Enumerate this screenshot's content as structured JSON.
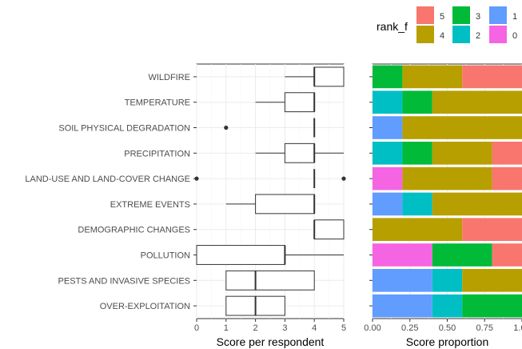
{
  "legend": {
    "title": "rank_f",
    "entries": [
      {
        "label": "5",
        "color": "#F8766D"
      },
      {
        "label": "4",
        "color": "#B79F00"
      },
      {
        "label": "3",
        "color": "#00BA38"
      },
      {
        "label": "2",
        "color": "#00BFC4"
      },
      {
        "label": "1",
        "color": "#619CFF"
      },
      {
        "label": "0",
        "color": "#F564E3"
      }
    ]
  },
  "chart_data": [
    {
      "type": "boxplot",
      "orientation": "horizontal",
      "xlabel": "Score per respondent",
      "xlim": [
        0,
        5
      ],
      "xticks": [
        "0",
        "1",
        "2",
        "3",
        "4",
        "5"
      ],
      "categories": [
        "WILDFIRE",
        "TEMPERATURE",
        "SOIL PHYSICAL DEGRADATION",
        "PRECIPITATION",
        "LAND-USE AND LAND-COVER CHANGE",
        "EXTREME EVENTS",
        "DEMOGRAPHIC CHANGES",
        "POLLUTION",
        "PESTS AND INVASIVE SPECIES",
        "OVER-EXPLOITATION"
      ],
      "boxes": [
        {
          "min": 3,
          "q1": 4,
          "median": 4,
          "q3": 5,
          "max": 5,
          "outliers": []
        },
        {
          "min": 2,
          "q1": 3,
          "median": 4,
          "q3": 4,
          "max": 4,
          "outliers": []
        },
        {
          "min": 4,
          "q1": 4,
          "median": 4,
          "q3": 4,
          "max": 4,
          "outliers": [
            1
          ]
        },
        {
          "min": 2,
          "q1": 3,
          "median": 4,
          "q3": 4,
          "max": 5,
          "outliers": []
        },
        {
          "min": 4,
          "q1": 4,
          "median": 4,
          "q3": 4,
          "max": 4,
          "outliers": [
            0,
            5
          ]
        },
        {
          "min": 1,
          "q1": 2,
          "median": 4,
          "q3": 4,
          "max": 4,
          "outliers": []
        },
        {
          "min": 4,
          "q1": 4,
          "median": 4,
          "q3": 5,
          "max": 5,
          "outliers": []
        },
        {
          "min": 0,
          "q1": 0,
          "median": 3,
          "q3": 3,
          "max": 5,
          "outliers": []
        },
        {
          "min": 1,
          "q1": 1,
          "median": 2,
          "q3": 4,
          "max": 4,
          "outliers": []
        },
        {
          "min": 1,
          "q1": 1,
          "median": 2,
          "q3": 3,
          "max": 3,
          "outliers": []
        }
      ]
    },
    {
      "type": "bar",
      "stacked": true,
      "orientation": "horizontal",
      "xlabel": "Score proportion",
      "xlim": [
        0,
        1
      ],
      "xticks": [
        "0.00",
        "0.25",
        "0.50",
        "0.75",
        "1.00"
      ],
      "categories": [
        "WILDFIRE",
        "TEMPERATURE",
        "SOIL PHYSICAL DEGRADATION",
        "PRECIPITATION",
        "LAND-USE AND LAND-COVER CHANGE",
        "EXTREME EVENTS",
        "DEMOGRAPHIC CHANGES",
        "POLLUTION",
        "PESTS AND INVASIVE SPECIES",
        "OVER-EXPLOITATION"
      ],
      "stack_order": [
        "0",
        "1",
        "2",
        "3",
        "4",
        "5"
      ],
      "series": [
        {
          "name": "0",
          "values": [
            0,
            0,
            0,
            0,
            0.2,
            0,
            0,
            0.4,
            0,
            0
          ]
        },
        {
          "name": "1",
          "values": [
            0,
            0,
            0.2,
            0,
            0,
            0.2,
            0,
            0,
            0.4,
            0.4
          ]
        },
        {
          "name": "2",
          "values": [
            0,
            0.2,
            0,
            0.2,
            0,
            0.2,
            0,
            0,
            0.2,
            0.2
          ]
        },
        {
          "name": "3",
          "values": [
            0.2,
            0.2,
            0,
            0.2,
            0,
            0,
            0,
            0.4,
            0,
            0.4
          ]
        },
        {
          "name": "4",
          "values": [
            0.4,
            0.6,
            0.8,
            0.4,
            0.6,
            0.6,
            0.6,
            0,
            0.4,
            0
          ]
        },
        {
          "name": "5",
          "values": [
            0.4,
            0,
            0,
            0.2,
            0.2,
            0,
            0.4,
            0.2,
            0,
            0
          ]
        }
      ]
    }
  ]
}
